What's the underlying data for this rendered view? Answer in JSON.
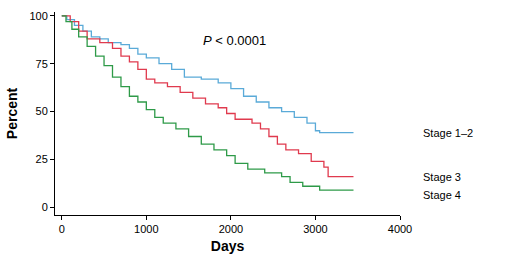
{
  "chart_data": {
    "type": "line",
    "line_style": "step",
    "x_label": "Days",
    "y_label": "Percent",
    "annotation": "P < 0.0001",
    "xlim": [
      -80,
      4000
    ],
    "xticks": [
      0,
      1000,
      2000,
      3000,
      4000
    ],
    "ylim": [
      -4,
      102
    ],
    "yticks": [
      0,
      25,
      50,
      75,
      100
    ],
    "grid": false,
    "series": [
      {
        "name": "Stage 1–2",
        "color": "#5aaad8",
        "x": [
          0,
          60,
          150,
          250,
          350,
          450,
          550,
          700,
          800,
          900,
          1000,
          1150,
          1300,
          1450,
          1650,
          1850,
          2000,
          2150,
          2300,
          2450,
          2600,
          2750,
          2900,
          3000,
          3050,
          3450
        ],
        "values": [
          100,
          98,
          95,
          92,
          89,
          88,
          86,
          85,
          83,
          80,
          78,
          75,
          72,
          68,
          67,
          65,
          62,
          58,
          55,
          52,
          50,
          47,
          44,
          40,
          39,
          39
        ]
      },
      {
        "name": "Stage 3",
        "color": "#e03a4e",
        "x": [
          0,
          100,
          200,
          300,
          450,
          600,
          700,
          800,
          900,
          1000,
          1100,
          1250,
          1400,
          1550,
          1700,
          1850,
          1950,
          2050,
          2250,
          2350,
          2450,
          2550,
          2650,
          2800,
          2950,
          3100,
          3150,
          3450
        ],
        "values": [
          100,
          97,
          92,
          88,
          86,
          83,
          79,
          76,
          72,
          67,
          65,
          63,
          60,
          57,
          54,
          52,
          49,
          46,
          44,
          41,
          37,
          33,
          30,
          28,
          24,
          21,
          16,
          16
        ]
      },
      {
        "name": "Stage 4",
        "color": "#2e9a48",
        "x": [
          0,
          50,
          120,
          200,
          300,
          400,
          500,
          600,
          700,
          800,
          900,
          1000,
          1100,
          1200,
          1350,
          1500,
          1650,
          1800,
          1950,
          2050,
          2200,
          2400,
          2600,
          2700,
          2850,
          3050,
          3450
        ],
        "values": [
          100,
          97,
          93,
          89,
          84,
          79,
          74,
          68,
          63,
          58,
          55,
          51,
          47,
          44,
          41,
          37,
          33,
          30,
          27,
          23,
          20,
          18,
          16,
          13,
          11,
          9,
          9
        ]
      }
    ]
  }
}
